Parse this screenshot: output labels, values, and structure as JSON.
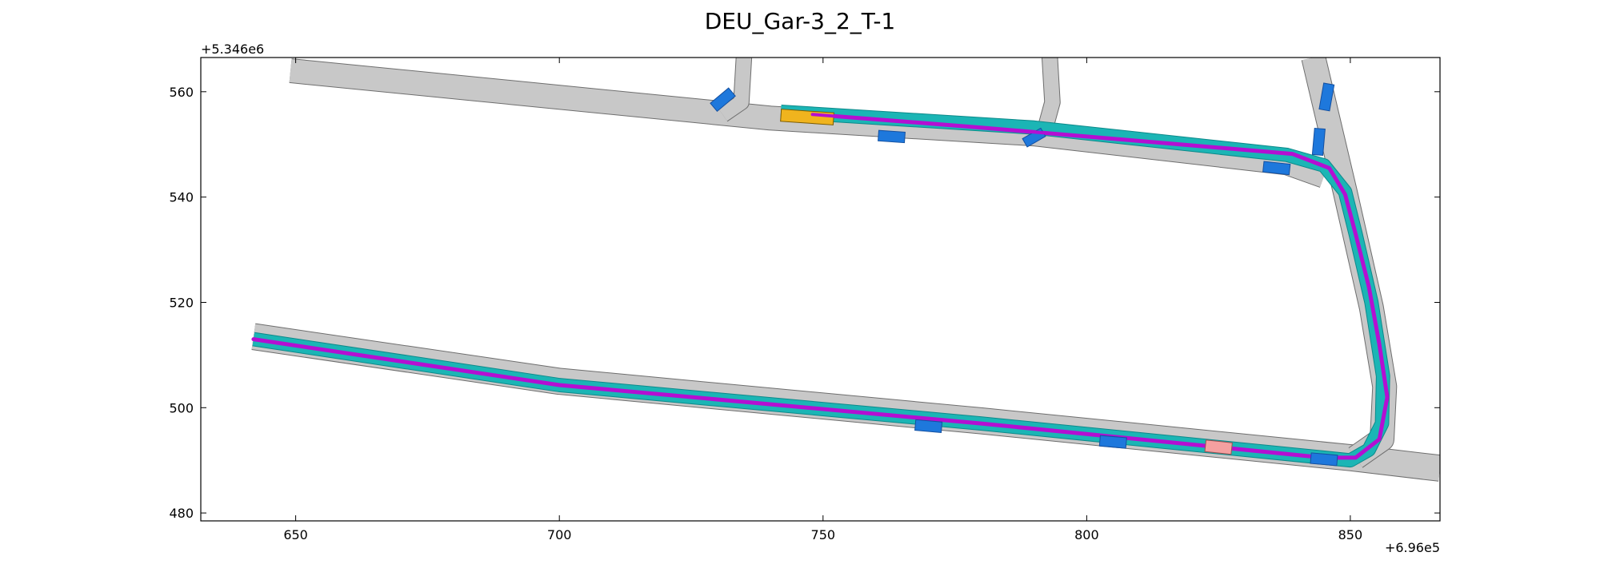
{
  "chart_data": {
    "type": "map",
    "title": "DEU_Gar-3_2_T-1",
    "x_offset_label": "+6.96e5",
    "y_offset_label": "+5.346e6",
    "xlim": [
      632,
      867
    ],
    "ylim": [
      478.5,
      566.5
    ],
    "x_ticks": [
      650,
      700,
      750,
      800,
      850
    ],
    "y_ticks": [
      480,
      500,
      520,
      540,
      560
    ],
    "x_tick_labels": [
      "650",
      "700",
      "750",
      "800",
      "850"
    ],
    "y_tick_labels": [
      "480",
      "500",
      "520",
      "540",
      "560"
    ],
    "colors": {
      "road": "#c8c8c8",
      "road_edge": "#6e6e6e",
      "route_lane": "#1bb5b5",
      "planned_path": "#b40fd2",
      "ego_vehicle": "#f0b41e",
      "goal_region": "#f5a0a0",
      "obstacle_vehicle": "#1e78dc"
    },
    "roads": [
      {
        "name": "upper-road",
        "width": 4.4,
        "points": [
          [
            649,
            564
          ],
          [
            740,
            555
          ],
          [
            790,
            552
          ],
          [
            838,
            546.5
          ],
          [
            845,
            544
          ]
        ]
      },
      {
        "name": "lower-road",
        "width": 4.8,
        "points": [
          [
            642,
            513.5
          ],
          [
            700,
            505
          ],
          [
            780,
            497.5
          ],
          [
            850,
            490.5
          ],
          [
            867,
            488.5
          ]
        ]
      },
      {
        "name": "right-connector",
        "width": 4.4,
        "points": [
          [
            843,
            566.5
          ],
          [
            849,
            541
          ],
          [
            854,
            519
          ],
          [
            856.5,
            504
          ],
          [
            856,
            494
          ],
          [
            851,
            490.5
          ]
        ]
      },
      {
        "name": "stub-west",
        "width": 2.8,
        "points": [
          [
            735,
            566.5
          ],
          [
            734.5,
            558
          ],
          [
            731,
            555.6
          ]
        ]
      },
      {
        "name": "stub-middle",
        "width": 2.8,
        "points": [
          [
            793,
            566.5
          ],
          [
            793.5,
            558
          ],
          [
            792,
            552.5
          ]
        ]
      }
    ],
    "route_lane": [
      [
        642,
        513
      ],
      [
        700,
        504.3
      ],
      [
        780,
        497
      ],
      [
        850,
        490
      ],
      [
        853.5,
        492
      ],
      [
        856,
        497
      ],
      [
        856.2,
        506
      ],
      [
        854,
        520
      ],
      [
        851,
        533
      ],
      [
        849,
        541
      ],
      [
        845,
        546
      ],
      [
        838,
        548
      ],
      [
        790,
        553.2
      ],
      [
        742,
        556.2
      ]
    ],
    "planned_path": [
      [
        642,
        513
      ],
      [
        700,
        504.3
      ],
      [
        780,
        497
      ],
      [
        845,
        490.5
      ],
      [
        851,
        490.5
      ],
      [
        855.5,
        494
      ],
      [
        857,
        502
      ],
      [
        855.5,
        512
      ],
      [
        853.5,
        523
      ],
      [
        851,
        533
      ],
      [
        849,
        540.5
      ],
      [
        846,
        545.5
      ],
      [
        839,
        548.2
      ],
      [
        800,
        551.5
      ],
      [
        780,
        553.2
      ],
      [
        748,
        555.7
      ]
    ],
    "ego_vehicle": {
      "x": 747,
      "y": 555.2,
      "length": 10,
      "width": 2.3,
      "heading_deg": -4
    },
    "goal_region": {
      "x": 825,
      "y": 492.5,
      "length": 5,
      "width": 2.2,
      "heading_deg": -6
    },
    "obstacles": [
      {
        "x": 731,
        "y": 558.5,
        "length": 4.5,
        "width": 2,
        "heading_deg": 40
      },
      {
        "x": 763,
        "y": 551.5,
        "length": 5,
        "width": 2,
        "heading_deg": -4
      },
      {
        "x": 790,
        "y": 551.3,
        "length": 4,
        "width": 1.8,
        "heading_deg": 30
      },
      {
        "x": 845.5,
        "y": 559,
        "length": 5,
        "width": 2,
        "heading_deg": 80
      },
      {
        "x": 844,
        "y": 550.5,
        "length": 5,
        "width": 2,
        "heading_deg": 85
      },
      {
        "x": 836,
        "y": 545.5,
        "length": 5,
        "width": 2,
        "heading_deg": -6
      },
      {
        "x": 770,
        "y": 496.5,
        "length": 5,
        "width": 2,
        "heading_deg": -5
      },
      {
        "x": 805,
        "y": 493.5,
        "length": 5,
        "width": 2,
        "heading_deg": -5
      },
      {
        "x": 845,
        "y": 490.2,
        "length": 5,
        "width": 2,
        "heading_deg": -5
      }
    ]
  }
}
